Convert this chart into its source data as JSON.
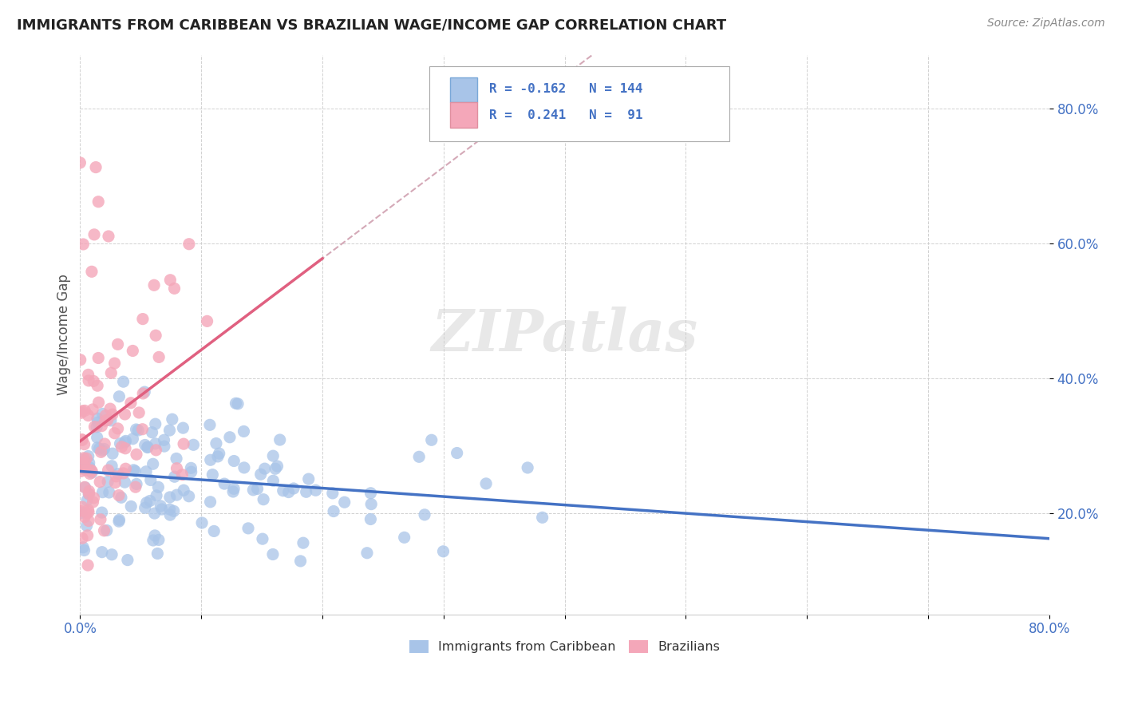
{
  "title": "IMMIGRANTS FROM CARIBBEAN VS BRAZILIAN WAGE/INCOME GAP CORRELATION CHART",
  "source": "Source: ZipAtlas.com",
  "ylabel": "Wage/Income Gap",
  "series1_color": "#a8c4e8",
  "series2_color": "#f4a7b9",
  "trendline1_color": "#4472c4",
  "trendline2_color": "#e06080",
  "trendline_ghost_color": "#d0a0b0",
  "background_color": "#ffffff",
  "series1_label": "Immigrants from Caribbean",
  "series2_label": "Brazilians",
  "series1_r": -0.162,
  "series1_n": 144,
  "series2_r": 0.241,
  "series2_n": 91,
  "xmin": 0.0,
  "xmax": 0.8,
  "ymin": 0.05,
  "ymax": 0.88
}
